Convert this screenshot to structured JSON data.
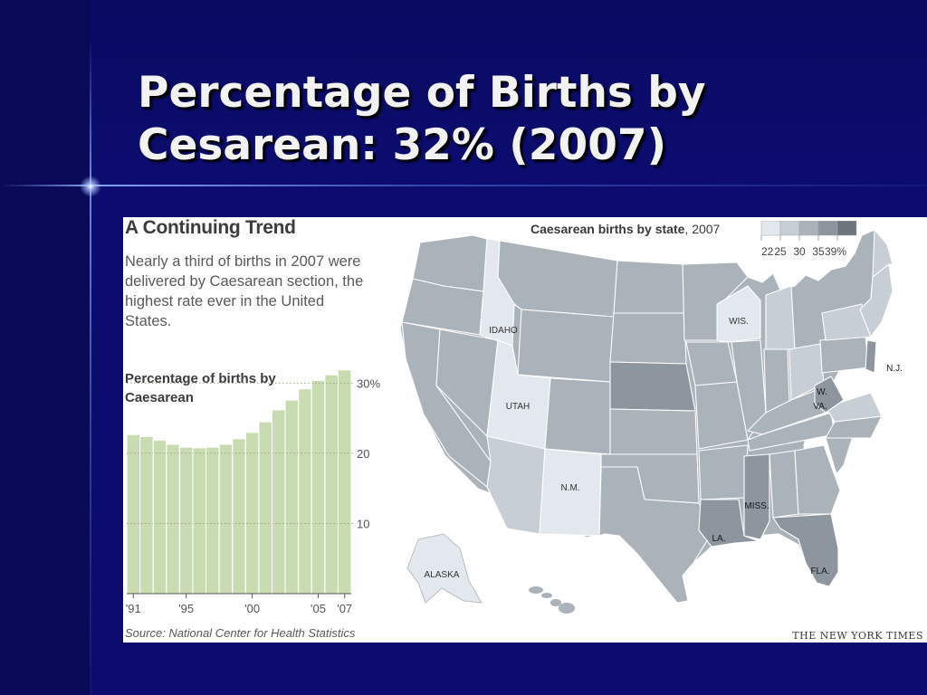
{
  "slide": {
    "title_line1": "Percentage of Births by",
    "title_line2": "Cesarean: 32% (2007)",
    "background_color": "#0c0c6e",
    "accent_line_color": "#8ea8ff"
  },
  "infographic": {
    "heading": "A Continuing Trend",
    "description": "Nearly a third of births in 2007 were delivered by Caesarean section, the highest rate ever in the United States.",
    "chart_label": "Percentage of births by Caesarean",
    "source": "Source: National Center for Health Statistics",
    "credit": "THE NEW YORK TIMES"
  },
  "chart_data": [
    {
      "type": "bar",
      "title": "Percentage of births by Caesarean",
      "x": [
        1991,
        1992,
        1993,
        1994,
        1995,
        1996,
        1997,
        1998,
        1999,
        2000,
        2001,
        2002,
        2003,
        2004,
        2005,
        2006,
        2007
      ],
      "values": [
        22.6,
        22.3,
        21.8,
        21.2,
        20.8,
        20.7,
        20.8,
        21.2,
        22.0,
        22.9,
        24.4,
        26.1,
        27.5,
        29.1,
        30.3,
        31.1,
        31.8
      ],
      "tick_labels": [
        "'91",
        "'95",
        "'00",
        "'05",
        "'07"
      ],
      "tick_years": [
        1991,
        1995,
        2000,
        2005,
        2007
      ],
      "y_ticks": [
        10,
        20,
        30
      ],
      "y_tick_labels": [
        "10",
        "20",
        "30%"
      ],
      "ylim": [
        0,
        33
      ],
      "grid": true,
      "bar_color": "#c9dbb0",
      "grid_color": "#8a9a7a"
    },
    {
      "type": "choropleth",
      "title": "Caesarean births by state",
      "year": "2007",
      "legend_thresholds": [
        "22",
        "25",
        "30",
        "35",
        "39%"
      ],
      "legend_colors": [
        "#e2e8ee",
        "#c7ced5",
        "#aab2ba",
        "#8d959e",
        "#6d747c"
      ],
      "labeled_states": [
        {
          "label": "IDAHO",
          "tier": 0
        },
        {
          "label": "UTAH",
          "tier": 0
        },
        {
          "label": "N.M.",
          "tier": 0
        },
        {
          "label": "WIS.",
          "tier": 0
        },
        {
          "label": "ALASKA",
          "tier": 0
        },
        {
          "label": "MISS.",
          "tier": 3
        },
        {
          "label": "LA.",
          "tier": 3
        },
        {
          "label": "W.",
          "tier": 3
        },
        {
          "label": "VA.",
          "tier": 3
        },
        {
          "label": "FLA.",
          "tier": 3
        },
        {
          "label": "N.J.",
          "tier": 3
        }
      ]
    }
  ]
}
